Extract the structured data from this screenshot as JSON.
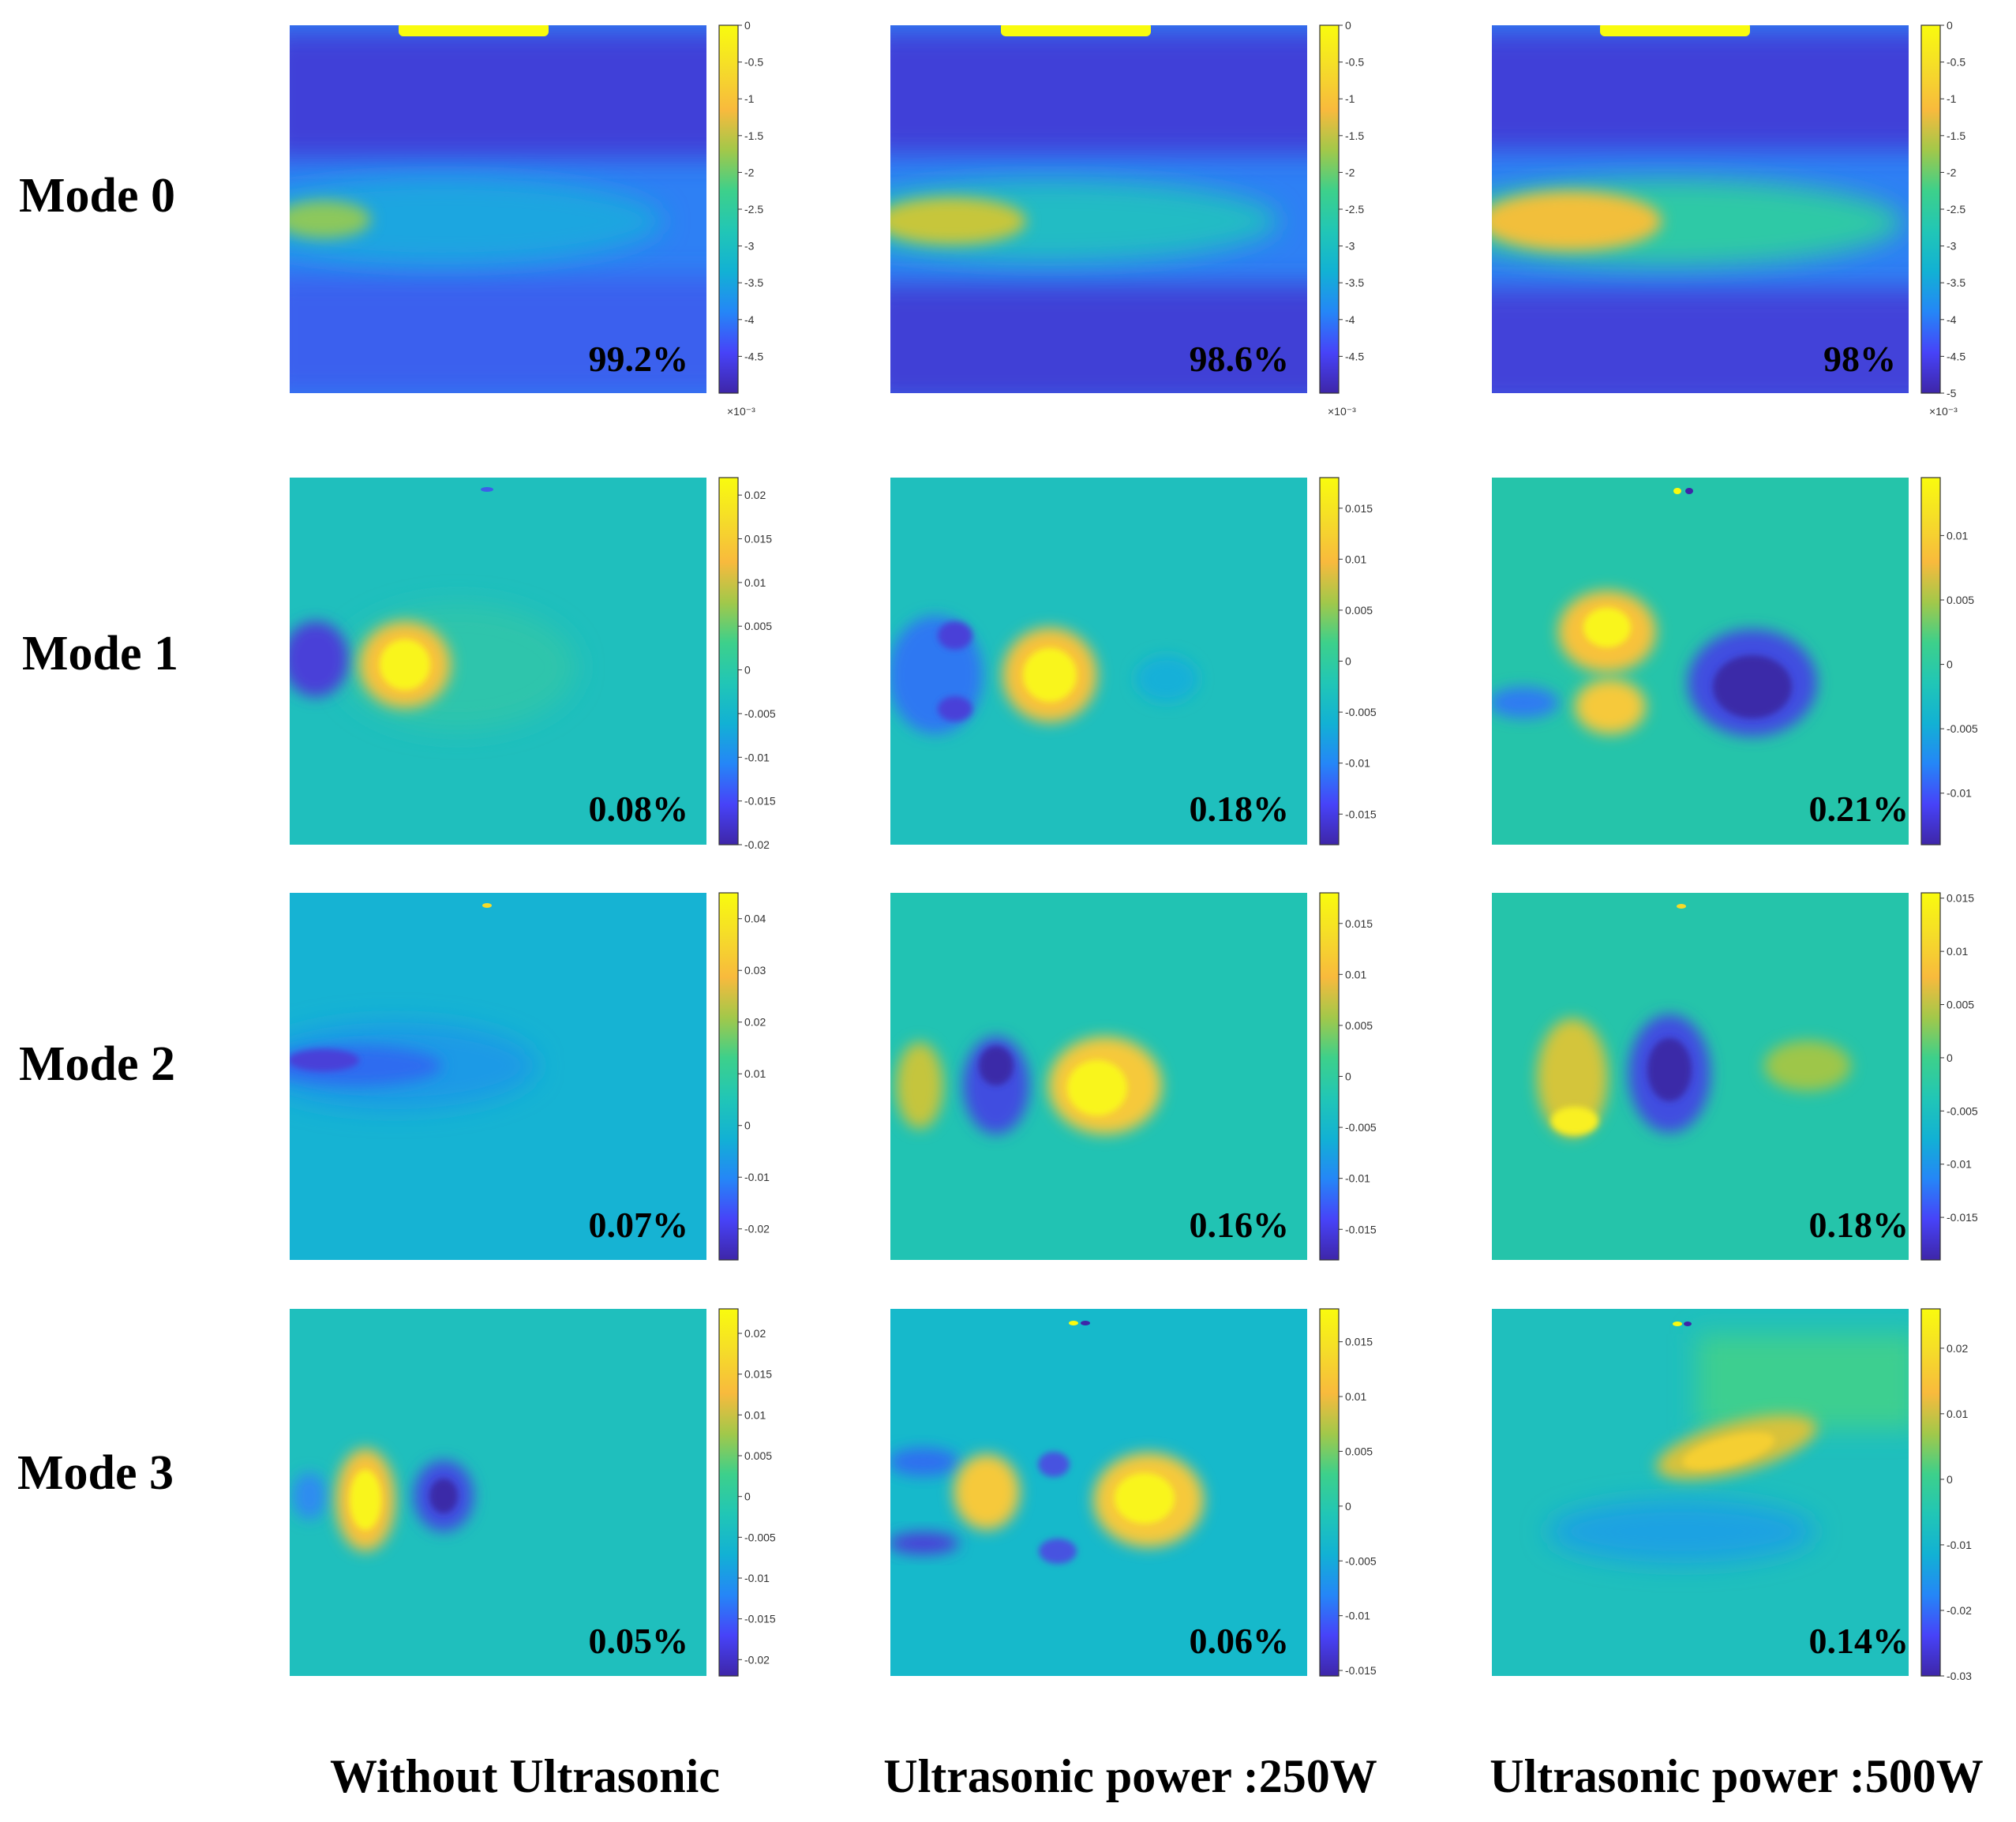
{
  "figure": {
    "columns": [
      "Without Ultrasonic",
      "Ultrasonic power :250W",
      "Ultrasonic power :500W"
    ],
    "colormap": [
      "#3e26a8",
      "#4743f8",
      "#2586f7",
      "#12b1d4",
      "#21c6b6",
      "#3dd08b",
      "#a2c84a",
      "#f8ba3d",
      "#f5db2a",
      "#f9fb0e"
    ],
    "frame_color": "#333333"
  },
  "rows": [
    {
      "label": "Mode 0",
      "panels": [
        {
          "percent": "99.2%",
          "base": "#2e80f4",
          "cbar": {
            "min": -5,
            "max": 0,
            "ticks": [
              "0",
              "-0.5",
              "-1",
              "-1.5",
              "-2",
              "-2.5",
              "-3",
              "-3.5",
              "-4",
              "-4.5"
            ],
            "tick_values": [
              0,
              -0.5,
              -1,
              -1.5,
              -2,
              -2.5,
              -3,
              -3.5,
              -4,
              -4.5
            ],
            "exponent": "×10⁻³"
          }
        },
        {
          "percent": "98.6%",
          "base": "#2e80f4",
          "cbar": {
            "min": -5,
            "max": 0,
            "ticks": [
              "0",
              "-0.5",
              "-1",
              "-1.5",
              "-2",
              "-2.5",
              "-3",
              "-3.5",
              "-4",
              "-4.5"
            ],
            "tick_values": [
              0,
              -0.5,
              -1,
              -1.5,
              -2,
              -2.5,
              -3,
              -3.5,
              -4,
              -4.5
            ],
            "exponent": "×10⁻³"
          }
        },
        {
          "percent": "98%",
          "base": "#2e80f4",
          "cbar": {
            "min": -5,
            "max": 0,
            "ticks": [
              "0",
              "-0.5",
              "-1",
              "-1.5",
              "-2",
              "-2.5",
              "-3",
              "-3.5",
              "-4",
              "-4.5",
              "-5"
            ],
            "tick_values": [
              0,
              -0.5,
              -1,
              -1.5,
              -2,
              -2.5,
              -3,
              -3.5,
              -4,
              -4.5,
              -5
            ],
            "exponent": "×10⁻³"
          }
        }
      ]
    },
    {
      "label": "Mode 1",
      "panels": [
        {
          "percent": "0.08%",
          "base": "#1fbfbd",
          "cbar": {
            "min": -0.02,
            "max": 0.022,
            "ticks": [
              "0.02",
              "0.015",
              "0.01",
              "0.005",
              "0",
              "-0.005",
              "-0.01",
              "-0.015",
              "-0.02"
            ],
            "tick_values": [
              0.02,
              0.015,
              0.01,
              0.005,
              0,
              -0.005,
              -0.01,
              -0.015,
              -0.02
            ],
            "exponent": ""
          }
        },
        {
          "percent": "0.18%",
          "base": "#1fbfbd",
          "cbar": {
            "min": -0.018,
            "max": 0.018,
            "ticks": [
              "0.015",
              "0.01",
              "0.005",
              "0",
              "-0.005",
              "-0.01",
              "-0.015"
            ],
            "tick_values": [
              0.015,
              0.01,
              0.005,
              0,
              -0.005,
              -0.01,
              -0.015
            ],
            "exponent": ""
          }
        },
        {
          "percent": "0.21%",
          "base": "#25c4aa",
          "cbar": {
            "min": -0.014,
            "max": 0.0145,
            "ticks": [
              "0.01",
              "0.005",
              "0",
              "-0.005",
              "-0.01"
            ],
            "tick_values": [
              0.01,
              0.005,
              0,
              -0.005,
              -0.01
            ],
            "exponent": ""
          }
        }
      ]
    },
    {
      "label": "Mode 2",
      "panels": [
        {
          "percent": "0.07%",
          "base": "#16b3d3",
          "cbar": {
            "min": -0.026,
            "max": 0.045,
            "ticks": [
              "0.04",
              "0.03",
              "0.02",
              "0.01",
              "0",
              "-0.01",
              "-0.02"
            ],
            "tick_values": [
              0.04,
              0.03,
              0.02,
              0.01,
              0,
              -0.01,
              -0.02
            ],
            "exponent": ""
          }
        },
        {
          "percent": "0.16%",
          "base": "#21c3b3",
          "cbar": {
            "min": -0.018,
            "max": 0.018,
            "ticks": [
              "0.015",
              "0.01",
              "0.005",
              "0",
              "-0.005",
              "-0.01",
              "-0.015"
            ],
            "tick_values": [
              0.015,
              0.01,
              0.005,
              0,
              -0.005,
              -0.01,
              -0.015
            ],
            "exponent": ""
          }
        },
        {
          "percent": "0.18%",
          "base": "#25c4aa",
          "cbar": {
            "min": -0.019,
            "max": 0.0155,
            "ticks": [
              "0.015",
              "0.01",
              "0.005",
              "0",
              "-0.005",
              "-0.01",
              "-0.015"
            ],
            "tick_values": [
              0.015,
              0.01,
              0.005,
              0,
              -0.005,
              -0.01,
              -0.015
            ],
            "exponent": ""
          }
        }
      ]
    },
    {
      "label": "Mode 3",
      "panels": [
        {
          "percent": "0.05%",
          "base": "#1fbfbd",
          "cbar": {
            "min": -0.022,
            "max": 0.023,
            "ticks": [
              "0.02",
              "0.015",
              "0.01",
              "0.005",
              "0",
              "-0.005",
              "-0.01",
              "-0.015",
              "-0.02"
            ],
            "tick_values": [
              0.02,
              0.015,
              0.01,
              0.005,
              0,
              -0.005,
              -0.01,
              -0.015,
              -0.02
            ],
            "exponent": ""
          }
        },
        {
          "percent": "0.06%",
          "base": "#16b9cb",
          "cbar": {
            "min": -0.0155,
            "max": 0.018,
            "ticks": [
              "0.015",
              "0.01",
              "0.005",
              "0",
              "-0.005",
              "-0.01",
              "-0.015"
            ],
            "tick_values": [
              0.015,
              0.01,
              0.005,
              0,
              -0.005,
              -0.01,
              -0.015
            ],
            "exponent": ""
          }
        },
        {
          "percent": "0.14%",
          "base": "#1fbfbd",
          "cbar": {
            "min": -0.03,
            "max": 0.026,
            "ticks": [
              "0.02",
              "0.01",
              "0",
              "-0.01",
              "-0.02",
              "-0.03"
            ],
            "tick_values": [
              0.02,
              0.01,
              0,
              -0.01,
              -0.02,
              -0.03
            ],
            "exponent": ""
          }
        }
      ]
    }
  ]
}
